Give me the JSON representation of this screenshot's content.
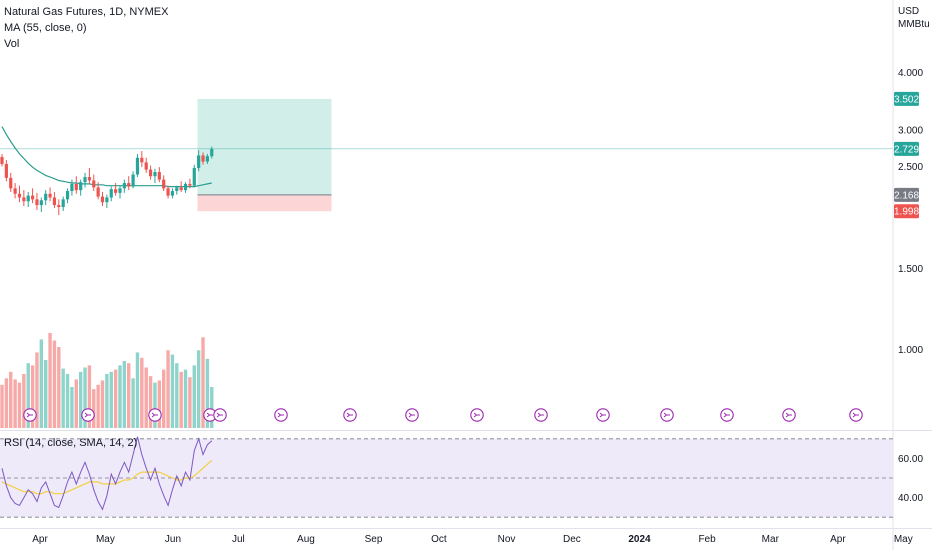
{
  "header": {
    "symbol_line": "Natural Gas Futures, 1D, NYMEX",
    "ma_line": "MA (55, close, 0)",
    "vol_line": "Vol",
    "currency": "USD",
    "unit": "MMBtu"
  },
  "colors": {
    "up": "#26a69a",
    "down": "#ef5350",
    "vol_up": "#8fd4cb",
    "vol_down": "#f7a9a7",
    "ma": "#2a9d8f",
    "target_zone": "#d1eee9",
    "stop_zone": "#fcd5d7",
    "rsi_line": "#7e57c2",
    "rsi_sma": "#f4d03f",
    "rsi_band": "#eeeafa",
    "event_icon": "#9c27b0"
  },
  "chart_data": [
    {
      "type": "candlestick",
      "title": "Natural Gas Futures, 1D, NYMEX",
      "ylabel": "USD MMBtu",
      "scale": "log",
      "ylim": [
        0.94,
        5.0
      ],
      "y_ticks": [
        {
          "value": 4.0,
          "label": "4.000"
        },
        {
          "value": 3.0,
          "label": "3.000"
        },
        {
          "value": 2.5,
          "label": "2.500"
        },
        {
          "value": 1.5,
          "label": "1.500"
        },
        {
          "value": 1.0,
          "label": "1.000"
        }
      ],
      "x_ticks": [
        "Apr",
        "May",
        "Jun",
        "Jul",
        "Aug",
        "Sep",
        "Oct",
        "Nov",
        "Dec",
        "2024",
        "Feb",
        "Mar",
        "Apr",
        "May"
      ],
      "x_ticks_bold": [
        "2024"
      ],
      "ohlc": [
        [
          2.62,
          2.66,
          2.5,
          2.53
        ],
        [
          2.53,
          2.58,
          2.32,
          2.36
        ],
        [
          2.36,
          2.42,
          2.2,
          2.24
        ],
        [
          2.24,
          2.3,
          2.13,
          2.18
        ],
        [
          2.18,
          2.27,
          2.09,
          2.14
        ],
        [
          2.14,
          2.22,
          2.05,
          2.1
        ],
        [
          2.1,
          2.2,
          2.04,
          2.16
        ],
        [
          2.16,
          2.24,
          2.08,
          2.12
        ],
        [
          2.12,
          2.19,
          2.01,
          2.06
        ],
        [
          2.06,
          2.14,
          1.99,
          2.11
        ],
        [
          2.11,
          2.22,
          2.06,
          2.18
        ],
        [
          2.18,
          2.25,
          2.1,
          2.14
        ],
        [
          2.14,
          2.2,
          2.03,
          2.06
        ],
        [
          2.06,
          2.12,
          1.96,
          2.04
        ],
        [
          2.04,
          2.15,
          2.0,
          2.12
        ],
        [
          2.12,
          2.24,
          2.08,
          2.21
        ],
        [
          2.21,
          2.34,
          2.16,
          2.29
        ],
        [
          2.29,
          2.38,
          2.18,
          2.22
        ],
        [
          2.22,
          2.34,
          2.16,
          2.31
        ],
        [
          2.31,
          2.42,
          2.25,
          2.37
        ],
        [
          2.37,
          2.48,
          2.29,
          2.33
        ],
        [
          2.33,
          2.4,
          2.21,
          2.25
        ],
        [
          2.25,
          2.31,
          2.12,
          2.15
        ],
        [
          2.15,
          2.2,
          2.05,
          2.09
        ],
        [
          2.09,
          2.17,
          2.03,
          2.14
        ],
        [
          2.14,
          2.26,
          2.1,
          2.23
        ],
        [
          2.23,
          2.3,
          2.16,
          2.19
        ],
        [
          2.19,
          2.27,
          2.13,
          2.24
        ],
        [
          2.24,
          2.34,
          2.19,
          2.3
        ],
        [
          2.3,
          2.38,
          2.22,
          2.26
        ],
        [
          2.26,
          2.44,
          2.24,
          2.4
        ],
        [
          2.4,
          2.66,
          2.37,
          2.61
        ],
        [
          2.61,
          2.7,
          2.49,
          2.55
        ],
        [
          2.55,
          2.61,
          2.42,
          2.46
        ],
        [
          2.46,
          2.51,
          2.34,
          2.38
        ],
        [
          2.38,
          2.47,
          2.3,
          2.43
        ],
        [
          2.43,
          2.49,
          2.31,
          2.34
        ],
        [
          2.34,
          2.39,
          2.21,
          2.24
        ],
        [
          2.24,
          2.27,
          2.13,
          2.16
        ],
        [
          2.16,
          2.24,
          2.13,
          2.21
        ],
        [
          2.21,
          2.27,
          2.17,
          2.25
        ],
        [
          2.25,
          2.32,
          2.2,
          2.22
        ],
        [
          2.22,
          2.31,
          2.19,
          2.29
        ],
        [
          2.29,
          2.35,
          2.24,
          2.27
        ],
        [
          2.27,
          2.52,
          2.25,
          2.48
        ],
        [
          2.48,
          2.71,
          2.44,
          2.64
        ],
        [
          2.64,
          2.68,
          2.52,
          2.56
        ],
        [
          2.56,
          2.66,
          2.53,
          2.63
        ],
        [
          2.63,
          2.76,
          2.6,
          2.729
        ]
      ],
      "ma55": [
        3.05,
        2.93,
        2.83,
        2.74,
        2.66,
        2.6,
        2.54,
        2.49,
        2.45,
        2.42,
        2.39,
        2.37,
        2.35,
        2.33,
        2.32,
        2.31,
        2.3,
        2.3,
        2.29,
        2.29,
        2.29,
        2.28,
        2.28,
        2.28,
        2.27,
        2.27,
        2.27,
        2.27,
        2.27,
        2.27,
        2.27,
        2.27,
        2.27,
        2.27,
        2.27,
        2.27,
        2.27,
        2.27,
        2.26,
        2.26,
        2.26,
        2.26,
        2.26,
        2.26,
        2.26,
        2.27,
        2.28,
        2.29,
        2.3
      ],
      "volume_rel": [
        0.4,
        0.46,
        0.52,
        0.45,
        0.42,
        0.5,
        0.6,
        0.58,
        0.7,
        0.82,
        0.63,
        0.88,
        0.81,
        0.75,
        0.55,
        0.5,
        0.38,
        0.45,
        0.52,
        0.56,
        0.58,
        0.36,
        0.4,
        0.44,
        0.5,
        0.52,
        0.54,
        0.58,
        0.62,
        0.6,
        0.46,
        0.7,
        0.65,
        0.56,
        0.48,
        0.42,
        0.44,
        0.54,
        0.72,
        0.68,
        0.6,
        0.52,
        0.54,
        0.47,
        0.58,
        0.72,
        0.84,
        0.64,
        0.38
      ],
      "position": {
        "entry": 2.168,
        "target": 3.502,
        "stop": 1.998
      },
      "price_labels": [
        {
          "value": 3.502,
          "label": "3.502",
          "color": "#26a69a"
        },
        {
          "value": 2.729,
          "label": "2.729",
          "color": "#26a69a"
        },
        {
          "value": 2.168,
          "label": "2.168",
          "color": "#787b86"
        },
        {
          "value": 1.998,
          "label": "1.998",
          "color": "#ef5350"
        }
      ]
    },
    {
      "type": "line",
      "title": "RSI (14, close, SMA, 14, 2)",
      "ylim": [
        23,
        73
      ],
      "y_ticks": [
        {
          "value": 60,
          "label": "60.00"
        },
        {
          "value": 40,
          "label": "40.00"
        }
      ],
      "bands": [
        30,
        50,
        70
      ],
      "rsi": [
        55,
        46,
        40,
        37,
        36,
        40,
        44,
        42,
        38,
        45,
        48,
        42,
        36,
        35,
        41,
        48,
        53,
        47,
        53,
        58,
        52,
        44,
        38,
        34,
        41,
        52,
        47,
        53,
        58,
        53,
        62,
        71,
        62,
        55,
        49,
        55,
        47,
        41,
        36,
        44,
        51,
        46,
        53,
        49,
        64,
        70,
        62,
        67,
        69
      ],
      "rsi_sma": [
        48,
        47,
        46,
        45,
        44,
        43,
        43,
        43,
        42,
        42,
        43,
        43,
        42,
        42,
        42,
        43,
        44,
        45,
        46,
        47,
        48,
        48,
        48,
        47,
        47,
        47,
        47,
        48,
        49,
        49,
        50,
        52,
        53,
        53,
        53,
        53,
        53,
        52,
        51,
        50,
        49,
        49,
        50,
        50,
        51,
        53,
        55,
        57,
        59
      ]
    }
  ]
}
